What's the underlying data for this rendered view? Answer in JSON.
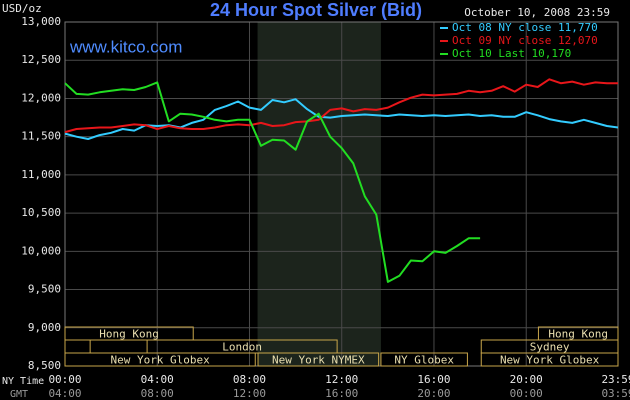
{
  "chart_data": {
    "type": "line",
    "title": "24 Hour Spot Silver (Bid)",
    "subtitle": "October 10, 2008 23:59",
    "annotation": "www.kitco.com",
    "y_label": "USD/oz",
    "x_label": "NY Time",
    "x2_label": "GMT",
    "xlim": [
      0,
      23.98
    ],
    "ylim": [
      8500,
      13000
    ],
    "xticks": [
      {
        "value": 0,
        "label": "00:00"
      },
      {
        "value": 4,
        "label": "04:00"
      },
      {
        "value": 8,
        "label": "08:00"
      },
      {
        "value": 12,
        "label": "12:00"
      },
      {
        "value": 16,
        "label": "16:00"
      },
      {
        "value": 20,
        "label": "20:00"
      },
      {
        "value": 23.98,
        "label": "23:59"
      }
    ],
    "xticks_gmt": [
      "04:00",
      "08:00",
      "12:00",
      "16:00",
      "20:00",
      "00:00",
      "03:59"
    ],
    "yticks": [
      {
        "value": 13000,
        "label": "13,000"
      },
      {
        "value": 12500,
        "label": "12,500"
      },
      {
        "value": 12000,
        "label": "12,000"
      },
      {
        "value": 11500,
        "label": "11,500"
      },
      {
        "value": 11000,
        "label": "11,000"
      },
      {
        "value": 10500,
        "label": "10,500"
      },
      {
        "value": 10000,
        "label": "10,000"
      },
      {
        "value": 9500,
        "label": "9,500"
      },
      {
        "value": 9000,
        "label": "9,000"
      },
      {
        "value": 8500,
        "label": "8,500"
      }
    ],
    "grid": true,
    "legend": "top-right",
    "shaded_range": [
      8.35,
      13.7
    ],
    "x": [
      0,
      0.5,
      1,
      1.5,
      2,
      2.5,
      3,
      3.5,
      4,
      4.5,
      5,
      5.5,
      6,
      6.5,
      7,
      7.5,
      8,
      8.5,
      9,
      9.5,
      10,
      10.5,
      11,
      11.5,
      12,
      12.5,
      13,
      13.5,
      14,
      14.5,
      15,
      15.5,
      16,
      16.5,
      17,
      17.5,
      18,
      18.5,
      19,
      19.5,
      20,
      20.5,
      21,
      21.5,
      22,
      22.5,
      23,
      23.5,
      23.98
    ],
    "series": [
      {
        "name": "Oct 08 NY close 11,770",
        "color": "#33ccff",
        "values": [
          11540,
          11500,
          11470,
          11520,
          11550,
          11600,
          11580,
          11650,
          11640,
          11650,
          11620,
          11680,
          11720,
          11850,
          11900,
          11960,
          11880,
          11850,
          11980,
          11950,
          11990,
          11860,
          11760,
          11750,
          11770,
          11780,
          11790,
          11780,
          11770,
          11790,
          11780,
          11770,
          11780,
          11770,
          11780,
          11790,
          11770,
          11780,
          11760,
          11760,
          11820,
          11780,
          11730,
          11700,
          11680,
          11720,
          11680,
          11640,
          11620
        ]
      },
      {
        "name": "Oct 09 NY close 12,070",
        "color": "#e8161a",
        "values": [
          11560,
          11600,
          11610,
          11620,
          11620,
          11640,
          11660,
          11650,
          11600,
          11640,
          11610,
          11600,
          11600,
          11620,
          11650,
          11660,
          11650,
          11680,
          11640,
          11650,
          11690,
          11700,
          11720,
          11850,
          11870,
          11830,
          11860,
          11850,
          11880,
          11950,
          12010,
          12050,
          12040,
          12050,
          12060,
          12100,
          12080,
          12100,
          12160,
          12090,
          12180,
          12150,
          12250,
          12200,
          12220,
          12180,
          12210,
          12200,
          12200
        ]
      },
      {
        "name": "Oct 10 Last 10,170",
        "color": "#22dd22",
        "values": [
          12200,
          12060,
          12050,
          12080,
          12100,
          12120,
          12110,
          12150,
          12210,
          11700,
          11800,
          11790,
          11760,
          11720,
          11700,
          11720,
          11720,
          11380,
          11460,
          11450,
          11330,
          11700,
          11800,
          11500,
          11350,
          11150,
          10720,
          10480,
          9600,
          9680,
          9880,
          9870,
          10000,
          9980,
          10070,
          10170,
          10170,
          null,
          null,
          null,
          null,
          null,
          null,
          null,
          null,
          null,
          null,
          null,
          null
        ]
      }
    ],
    "sessions": [
      [
        {
          "label": "Hong Kong",
          "start": 0,
          "end": 5.56
        },
        {
          "label": "Hong Kong",
          "start": 20.53,
          "end": 23.98
        }
      ],
      [
        {
          "label": null,
          "start": 0,
          "end": 1.09
        },
        {
          "label": "London",
          "start": 3.56,
          "end": 11.8
        },
        {
          "label": "Sydney",
          "start": 18.05,
          "end": 23.98
        }
      ],
      [
        {
          "label": "New York Globex",
          "start": 0,
          "end": 8.25
        },
        {
          "label": "New York NYMEX",
          "start": 8.37,
          "end": 13.6
        },
        {
          "label": "NY Globex",
          "start": 13.7,
          "end": 17.45
        },
        {
          "label": "New York Globex",
          "start": 18.05,
          "end": 23.98
        }
      ]
    ]
  }
}
